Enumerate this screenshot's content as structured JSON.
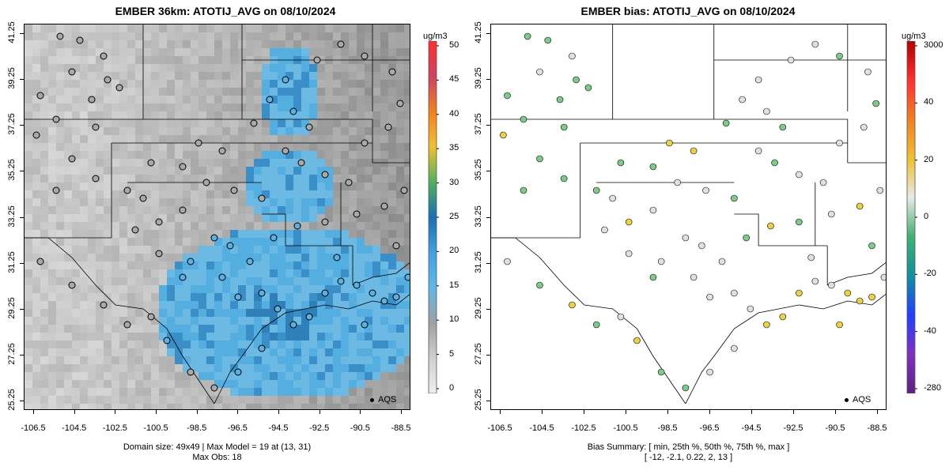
{
  "panel1": {
    "title": "EMBER 36km: ATOTIJ_AVG on 08/10/2024",
    "footer_line1": "Domain size: 49x49 | Max Model = 19 at (13, 31)",
    "footer_line2": "Max Obs: 18",
    "legend_label": "AQS",
    "colorbar_unit": "ug/m3",
    "colorbar_labels": [
      "50",
      "45",
      "40",
      "35",
      "30",
      "25",
      "20",
      "15",
      "10",
      "5",
      "0"
    ]
  },
  "panel2": {
    "title": "EMBER bias: ATOTIJ_AVG on 08/10/2024",
    "footer_line1": "Bias Summary: [ min, 25th %, 50th %, 75th %, max ]",
    "footer_line2": "[ -12,   -2.1,   0.22,   2,   13 ]",
    "legend_label": "AQS",
    "colorbar_unit": "ug/m3",
    "colorbar_labels": [
      "3000",
      "40",
      "20",
      "0",
      "-20",
      "-40",
      "-280"
    ]
  },
  "axes": {
    "x_ticks": [
      "-106.5",
      "-104.5",
      "-102.5",
      "-100.5",
      "-98.5",
      "-96.5",
      "-94.5",
      "-92.5",
      "-90.5",
      "-88.5"
    ],
    "y_ticks": [
      "41.25",
      "39.25",
      "37.25",
      "35.25",
      "33.25",
      "31.25",
      "29.25",
      "27.25",
      "25.25"
    ]
  },
  "colors": {
    "obs_low": "#a9a9a9",
    "obs_mid": "#5fb0e0",
    "bias_neutral": "#e0e0e0",
    "bias_neg": "#7fc98a",
    "bias_pos": "#e8d24a"
  }
}
